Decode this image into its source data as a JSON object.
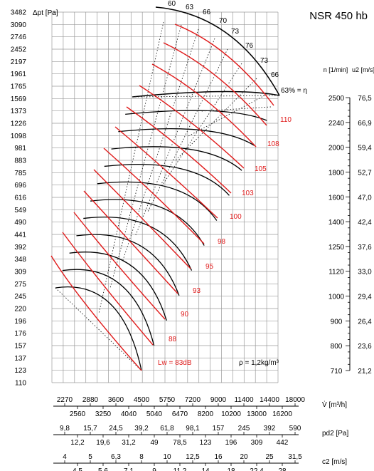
{
  "chart_data": {
    "type": "line",
    "title": "NSR 450 hb",
    "y_axis": {
      "label": "Δpt [Pa]",
      "scale": "log",
      "ticks": [
        110,
        123,
        137,
        157,
        176,
        196,
        220,
        245,
        275,
        309,
        348,
        392,
        441,
        490,
        549,
        616,
        696,
        785,
        883,
        981,
        1098,
        1226,
        1373,
        1569,
        1765,
        1961,
        2197,
        2452,
        2746,
        3090,
        3482
      ]
    },
    "x_axes": [
      {
        "name": "flow",
        "label": "V̇ [m³/h]",
        "ticks_upper": [
          "2270",
          "2880",
          "3600",
          "4500",
          "5750",
          "7200",
          "9000",
          "11400",
          "14400",
          "18000"
        ],
        "ticks_lower": [
          "2560",
          "3250",
          "4040",
          "5040",
          "6470",
          "8200",
          "10200",
          "13000",
          "16200"
        ]
      },
      {
        "name": "pd2",
        "label": "pd2 [Pa]",
        "ticks_upper": [
          "9,8",
          "15,7",
          "24,5",
          "39,2",
          "61,8",
          "98,1",
          "157",
          "245",
          "392",
          "590"
        ],
        "ticks_lower": [
          "12,2",
          "19,6",
          "31,2",
          "49",
          "78,5",
          "123",
          "196",
          "309",
          "442"
        ]
      },
      {
        "name": "c2",
        "label": "c2 [m/s]",
        "ticks_upper": [
          "4",
          "5",
          "6,3",
          "8",
          "10",
          "12,5",
          "16",
          "20",
          "25",
          "31,5"
        ],
        "ticks_lower": [
          "4,5",
          "5,6",
          "7,1",
          "9",
          "11,2",
          "14",
          "18",
          "22,4",
          "28"
        ]
      }
    ],
    "right_axis": {
      "n_label": "n [1/min]",
      "u2_label": "u2 [m/s]",
      "rows": [
        {
          "n": "2500",
          "u2": "76,5"
        },
        {
          "n": "2240",
          "u2": "66,9"
        },
        {
          "n": "2000",
          "u2": "59,4"
        },
        {
          "n": "1800",
          "u2": "52,7"
        },
        {
          "n": "1600",
          "u2": "47,0"
        },
        {
          "n": "1400",
          "u2": "42,4"
        },
        {
          "n": "1250",
          "u2": "37,6"
        },
        {
          "n": "1120",
          "u2": "33,0"
        },
        {
          "n": "1000",
          "u2": "29,4"
        },
        {
          "n": "900",
          "u2": "26,4"
        },
        {
          "n": "800",
          "u2": "23,6"
        },
        {
          "n": "710",
          "u2": "21,2"
        }
      ]
    },
    "efficiency_labels": [
      "60",
      "63",
      "66",
      "70",
      "73",
      "76",
      "73",
      "66",
      "63% = η"
    ],
    "sound_labels": [
      "110",
      "108",
      "105",
      "103",
      "100",
      "98",
      "95",
      "93",
      "90",
      "88"
    ],
    "sound_base_label": "Lw = 83dB",
    "density_label": "ρ = 1,2kg/m³",
    "speed_curve_count": 12,
    "colors": {
      "grid": "#9a9a9a",
      "speed_curve": "#000000",
      "sound_curve": "#e01b1b",
      "sound_text": "#e01b1b"
    }
  }
}
